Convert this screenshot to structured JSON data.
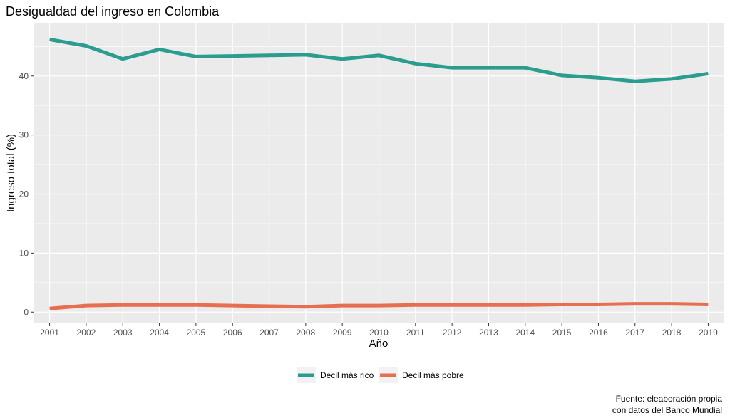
{
  "chart_data": {
    "type": "line",
    "title": "Desigualdad del ingreso en Colombia",
    "xlabel": "Año",
    "ylabel": "Ingreso total (%)",
    "x": [
      2001,
      2002,
      2003,
      2004,
      2005,
      2006,
      2007,
      2008,
      2009,
      2010,
      2011,
      2012,
      2013,
      2014,
      2015,
      2016,
      2017,
      2018,
      2019
    ],
    "xlim": [
      2000.56,
      2019.44
    ],
    "ylim": [
      -1.9,
      48.9
    ],
    "yticks": [
      0,
      10,
      20,
      30,
      40
    ],
    "grid": true,
    "legend_position": "bottom",
    "series": [
      {
        "name": "Decil más rico",
        "color": "#2a9d8f",
        "values": [
          46.2,
          45.1,
          42.9,
          44.5,
          43.3,
          43.4,
          43.5,
          43.6,
          42.9,
          43.5,
          42.1,
          41.4,
          41.4,
          41.4,
          40.1,
          39.7,
          39.1,
          39.5,
          40.4
        ]
      },
      {
        "name": "Decil más pobre",
        "color": "#e76f51",
        "values": [
          0.6,
          1.1,
          1.2,
          1.2,
          1.2,
          1.1,
          1.0,
          0.9,
          1.1,
          1.1,
          1.2,
          1.2,
          1.2,
          1.2,
          1.3,
          1.3,
          1.4,
          1.4,
          1.3
        ]
      }
    ],
    "caption": [
      "Fuente: eleaboración propia",
      "con datos del Banco Mundial"
    ]
  }
}
